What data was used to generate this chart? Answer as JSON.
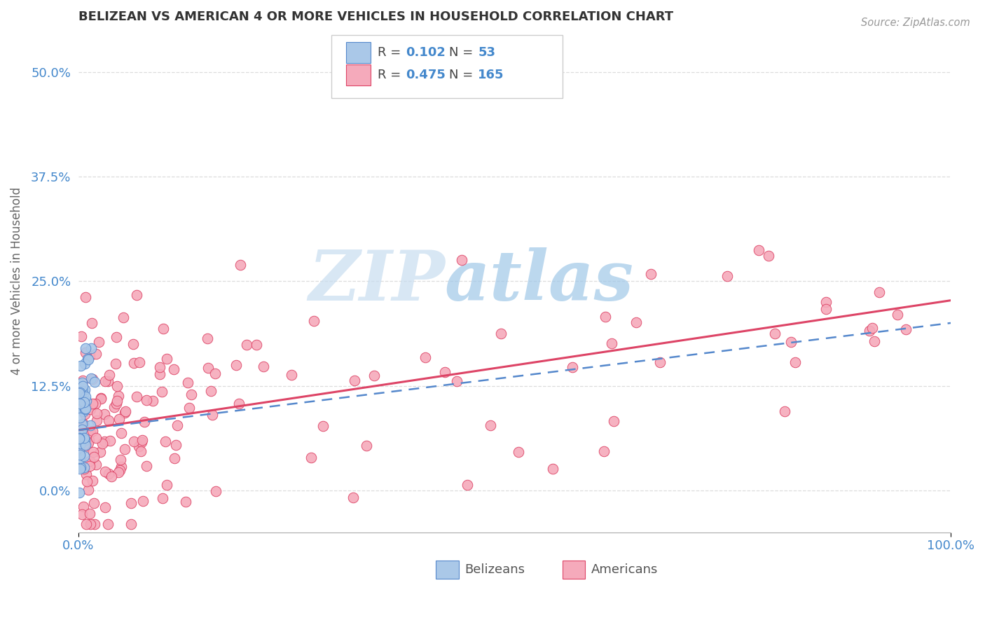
{
  "title": "BELIZEAN VS AMERICAN 4 OR MORE VEHICLES IN HOUSEHOLD CORRELATION CHART",
  "source": "Source: ZipAtlas.com",
  "ylabel": "4 or more Vehicles in Household",
  "xlim": [
    0.0,
    1.0
  ],
  "ylim": [
    -0.05,
    0.55
  ],
  "yticks": [
    0.0,
    0.125,
    0.25,
    0.375,
    0.5
  ],
  "ytick_labels": [
    "0.0%",
    "12.5%",
    "25.0%",
    "37.5%",
    "50.0%"
  ],
  "xticks": [
    0.0,
    1.0
  ],
  "xtick_labels": [
    "0.0%",
    "100.0%"
  ],
  "watermark_zip": "ZIP",
  "watermark_atlas": "atlas",
  "belizean_R": 0.102,
  "belizean_N": 53,
  "american_R": 0.475,
  "american_N": 165,
  "belizean_color": "#aac8e8",
  "american_color": "#f5aabb",
  "belizean_edge_color": "#5588cc",
  "american_edge_color": "#dd4466",
  "belizean_line_color": "#5588cc",
  "american_line_color": "#dd4466",
  "tick_color": "#4488cc",
  "ylabel_color": "#666666",
  "title_color": "#333333",
  "source_color": "#999999",
  "background_color": "#ffffff",
  "grid_color": "#dddddd",
  "legend_box_color": "#cccccc",
  "watermark_color_zip": "#c8ddf0",
  "watermark_color_atlas": "#a0c8e8",
  "ame_line_intercept": 0.072,
  "ame_line_slope": 0.155,
  "bel_line_intercept": 0.072,
  "bel_line_slope": 0.128
}
